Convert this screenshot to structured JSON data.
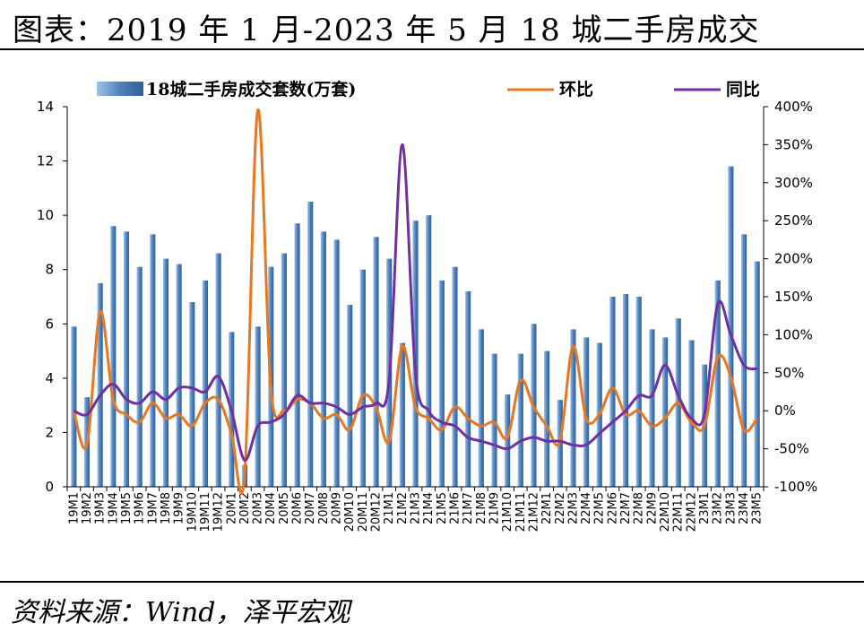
{
  "title": "图表：2019 年 1 月-2023 年 5 月 18 城二手房成交",
  "source": "资料来源：Wind，泽平宏观",
  "colors": {
    "bar": "#4f81bd",
    "mom": "#e87722",
    "yoy": "#7030a0",
    "axis": "#000000"
  },
  "chart_data": {
    "type": "bar+line",
    "categories": [
      "19M1",
      "19M2",
      "19M3",
      "19M4",
      "19M5",
      "19M6",
      "19M7",
      "19M8",
      "19M9",
      "19M10",
      "19M11",
      "19M12",
      "20M1",
      "20M2",
      "20M3",
      "20M4",
      "20M5",
      "20M6",
      "20M7",
      "20M8",
      "20M9",
      "20M10",
      "20M11",
      "20M12",
      "21M1",
      "21M2",
      "21M3",
      "21M4",
      "21M5",
      "21M6",
      "21M7",
      "21M8",
      "21M9",
      "21M10",
      "21M11",
      "21M12",
      "22M1",
      "22M2",
      "22M3",
      "22M4",
      "22M5",
      "22M6",
      "22M7",
      "22M8",
      "22M9",
      "22M10",
      "22M11",
      "22M12",
      "23M1",
      "23M2",
      "23M3",
      "23M4",
      "23M5"
    ],
    "series": [
      {
        "name": "18城二手房成交套数(万套)",
        "axis": "left",
        "type": "bar",
        "values": [
          5.9,
          3.3,
          7.5,
          9.6,
          9.4,
          8.1,
          9.3,
          8.4,
          8.2,
          6.8,
          7.6,
          8.6,
          5.7,
          0.8,
          5.9,
          8.1,
          8.6,
          9.7,
          10.5,
          9.4,
          9.1,
          6.7,
          8.0,
          9.2,
          8.4,
          5.3,
          9.8,
          10.0,
          7.6,
          8.1,
          7.2,
          5.8,
          4.9,
          3.4,
          4.9,
          6.0,
          5.0,
          3.2,
          5.8,
          5.5,
          5.3,
          7.0,
          7.1,
          7.0,
          5.8,
          5.5,
          6.2,
          5.4,
          4.5,
          7.6,
          11.8,
          9.3,
          8.3
        ]
      },
      {
        "name": "环比",
        "axis": "right",
        "type": "line",
        "values": [
          0,
          -45,
          130,
          15,
          -5,
          -15,
          10,
          -10,
          -5,
          -20,
          10,
          15,
          -30,
          -85,
          395,
          30,
          0,
          15,
          10,
          -10,
          -5,
          -25,
          20,
          5,
          -40,
          85,
          5,
          -10,
          -25,
          5,
          -10,
          -20,
          -15,
          -35,
          40,
          5,
          -20,
          -40,
          85,
          -10,
          -5,
          30,
          -5,
          0,
          -20,
          -10,
          10,
          -15,
          -20,
          70,
          45,
          -25,
          -10
        ]
      },
      {
        "name": "同比",
        "axis": "right",
        "type": "line",
        "values": [
          0,
          -5,
          20,
          35,
          15,
          10,
          25,
          15,
          30,
          30,
          25,
          45,
          0,
          -65,
          -20,
          -15,
          -5,
          20,
          10,
          10,
          5,
          -5,
          5,
          10,
          40,
          350,
          50,
          0,
          -15,
          -20,
          -35,
          -40,
          -45,
          -50,
          -40,
          -35,
          -40,
          -40,
          -45,
          -45,
          -30,
          -15,
          0,
          20,
          20,
          60,
          20,
          -10,
          -5,
          140,
          100,
          60,
          55
        ]
      }
    ],
    "yleft": {
      "min": 0,
      "max": 14,
      "ticks": [
        "0",
        "2",
        "4",
        "6",
        "8",
        "10",
        "12",
        "14"
      ]
    },
    "yright": {
      "min": -100,
      "max": 400,
      "ticks": [
        "-100%",
        "-50%",
        "0%",
        "50%",
        "100%",
        "150%",
        "200%",
        "250%",
        "300%",
        "350%",
        "400%"
      ]
    },
    "legend": [
      "18城二手房成交套数(万套)",
      "环比",
      "同比"
    ],
    "legend_position": "top"
  }
}
